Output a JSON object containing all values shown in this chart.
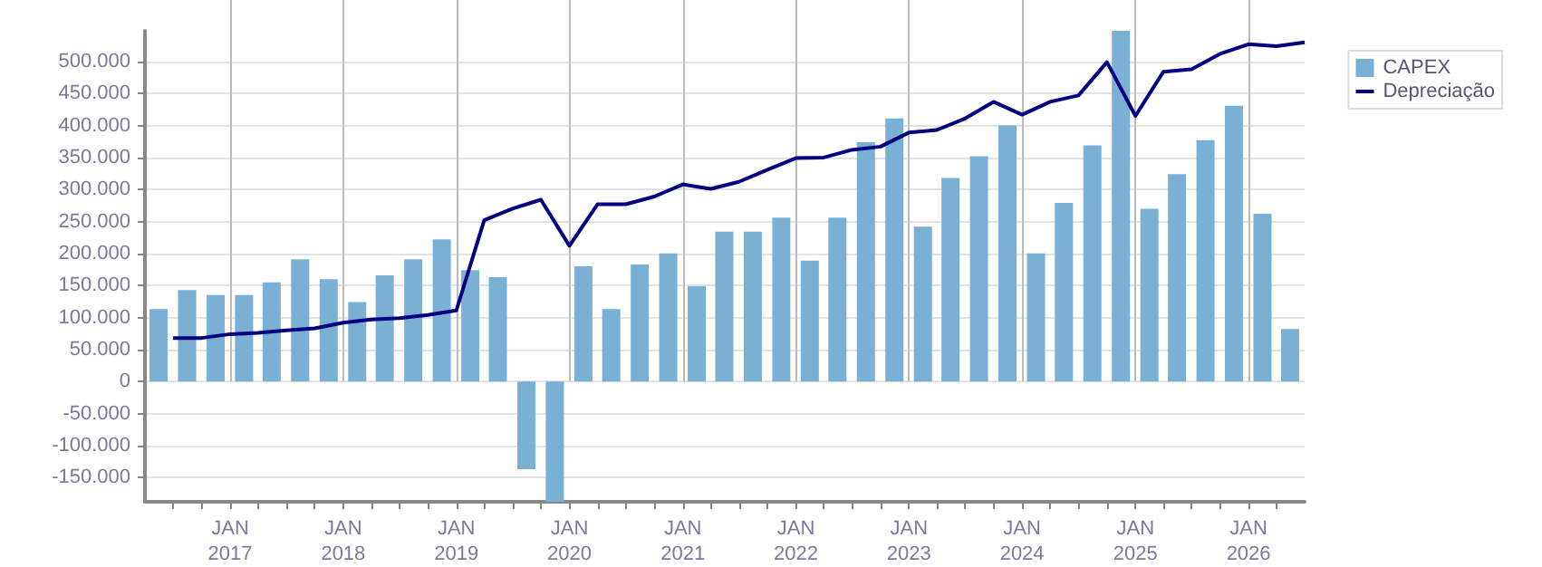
{
  "chart_data": {
    "type": "bar",
    "x": [
      "2016-05-15",
      "2016-08-15",
      "2016-11-15",
      "2017-02-15",
      "2017-05-15",
      "2017-08-15",
      "2017-11-15",
      "2018-02-15",
      "2018-05-15",
      "2018-08-15",
      "2018-11-15",
      "2019-02-15",
      "2019-05-15",
      "2019-08-15",
      "2019-11-15",
      "2020-02-15",
      "2020-05-15",
      "2020-08-15",
      "2020-11-15",
      "2021-02-15",
      "2021-05-15",
      "2021-08-15",
      "2021-11-15",
      "2022-02-15",
      "2022-05-15",
      "2022-08-15",
      "2022-11-15",
      "2023-02-15",
      "2023-05-15",
      "2023-08-15",
      "2023-11-15",
      "2024-02-15",
      "2024-05-15",
      "2024-08-15",
      "2024-11-15",
      "2025-02-15",
      "2025-05-15",
      "2025-08-15",
      "2025-11-15",
      "2026-02-15",
      "2026-05-15"
    ],
    "series": [
      {
        "name": "CAPEX",
        "color": "#7ab0d4",
        "values": [
          113000,
          143000,
          135000,
          135000,
          155000,
          191000,
          160000,
          124000,
          166000,
          191000,
          222000,
          174000,
          163000,
          -137000,
          -188000,
          180000,
          113000,
          183000,
          200000,
          149000,
          234000,
          234000,
          256000,
          189000,
          256000,
          374000,
          411000,
          242000,
          318000,
          352000,
          400000,
          200000,
          279000,
          369000,
          548000,
          270000,
          324000,
          377000,
          431000,
          262000,
          82000
        ]
      },
      {
        "name": "Depreciação",
        "type": "line",
        "color": "#000080",
        "x": [
          "2016-07",
          "2016-10",
          "2017-01",
          "2017-04",
          "2017-07",
          "2017-10",
          "2018-01",
          "2018-04",
          "2018-07",
          "2018-10",
          "2019-01",
          "2019-04",
          "2019-07",
          "2019-10",
          "2020-01",
          "2020-04",
          "2020-07",
          "2020-10",
          "2021-01",
          "2021-04",
          "2021-07",
          "2021-10",
          "2022-01",
          "2022-04",
          "2022-07",
          "2022-10",
          "2023-01",
          "2023-04",
          "2023-07",
          "2023-10",
          "2024-01",
          "2024-04",
          "2024-07",
          "2024-10",
          "2025-01",
          "2025-04",
          "2025-07",
          "2025-10",
          "2026-01",
          "2026-04",
          "2026-07"
        ],
        "values": [
          68000,
          68000,
          74000,
          76000,
          80000,
          83000,
          92000,
          97000,
          99000,
          104000,
          111000,
          252000,
          270000,
          284000,
          212000,
          277000,
          277000,
          289000,
          308000,
          301000,
          312000,
          331000,
          349000,
          350000,
          362000,
          367000,
          389000,
          393000,
          411000,
          437000,
          417000,
          437000,
          447000,
          499000,
          415000,
          484000,
          488000,
          512000,
          527000,
          524000,
          530000
        ]
      }
    ],
    "xlim": [
      "2016-04",
      "2026-07"
    ],
    "xticks": [
      {
        "value": "2016-07",
        "label": null
      },
      {
        "value": "2016-10",
        "label": null
      },
      {
        "value": "2017-01",
        "label": "JAN\n2017"
      },
      {
        "value": "2017-04",
        "label": null
      },
      {
        "value": "2017-07",
        "label": null
      },
      {
        "value": "2017-10",
        "label": null
      },
      {
        "value": "2018-01",
        "label": "JAN\n2018"
      },
      {
        "value": "2018-04",
        "label": null
      },
      {
        "value": "2018-07",
        "label": null
      },
      {
        "value": "2018-10",
        "label": null
      },
      {
        "value": "2019-01",
        "label": "JAN\n2019"
      },
      {
        "value": "2019-04",
        "label": null
      },
      {
        "value": "2019-07",
        "label": null
      },
      {
        "value": "2019-10",
        "label": null
      },
      {
        "value": "2020-01",
        "label": "JAN\n2020"
      },
      {
        "value": "2020-04",
        "label": null
      },
      {
        "value": "2020-07",
        "label": null
      },
      {
        "value": "2020-10",
        "label": null
      },
      {
        "value": "2021-01",
        "label": "JAN\n2021"
      },
      {
        "value": "2021-04",
        "label": null
      },
      {
        "value": "2021-07",
        "label": null
      },
      {
        "value": "2021-10",
        "label": null
      },
      {
        "value": "2022-01",
        "label": "JAN\n2022"
      },
      {
        "value": "2022-04",
        "label": null
      },
      {
        "value": "2022-07",
        "label": null
      },
      {
        "value": "2022-10",
        "label": null
      },
      {
        "value": "2023-01",
        "label": "JAN\n2023"
      },
      {
        "value": "2023-04",
        "label": null
      },
      {
        "value": "2023-07",
        "label": null
      },
      {
        "value": "2023-10",
        "label": null
      },
      {
        "value": "2024-01",
        "label": "JAN\n2024"
      },
      {
        "value": "2024-04",
        "label": null
      },
      {
        "value": "2024-07",
        "label": null
      },
      {
        "value": "2024-10",
        "label": null
      },
      {
        "value": "2025-01",
        "label": "JAN\n2025"
      },
      {
        "value": "2025-04",
        "label": null
      },
      {
        "value": "2025-07",
        "label": null
      },
      {
        "value": "2025-10",
        "label": null
      },
      {
        "value": "2026-01",
        "label": "JAN\n2026"
      },
      {
        "value": "2026-04",
        "label": null
      }
    ],
    "ylim": [
      -188000,
      548000
    ],
    "yticks": [
      {
        "value": -150000,
        "label": "-150.000"
      },
      {
        "value": -100000,
        "label": "-100.000"
      },
      {
        "value": -50000,
        "label": "-50.000"
      },
      0,
      {
        "value": 50000,
        "label": "50.000"
      },
      {
        "value": 100000,
        "label": "100.000"
      },
      {
        "value": 150000,
        "label": "150.000"
      },
      {
        "value": 200000,
        "label": "200.000"
      },
      {
        "value": 250000,
        "label": "250.000"
      },
      {
        "value": 300000,
        "label": "300.000"
      },
      {
        "value": 350000,
        "label": "350.000"
      },
      {
        "value": 400000,
        "label": "400.000"
      },
      {
        "value": 450000,
        "label": "450.000"
      },
      {
        "value": 500000,
        "label": "500.000"
      }
    ],
    "grid": true,
    "legend": "top right",
    "marker": "none",
    "line_style": "solid"
  }
}
